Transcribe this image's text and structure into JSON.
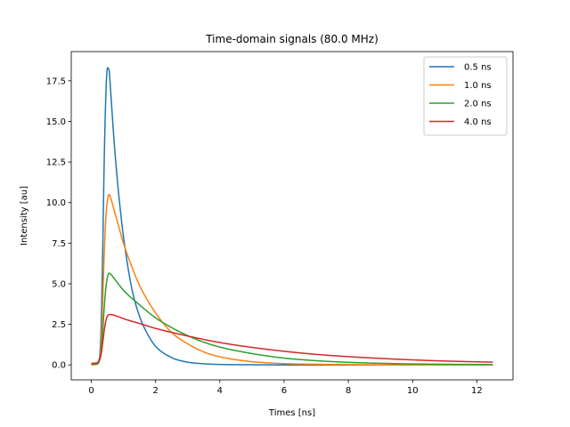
{
  "chart_data": {
    "type": "line",
    "title": "Time-domain signals (80.0 MHz)",
    "xlabel": "Times [ns]",
    "ylabel": "Intensity [au]",
    "xlim": [
      -0.625,
      13.125
    ],
    "ylim": [
      -0.92,
      19.3
    ],
    "xticks": [
      0,
      2,
      4,
      6,
      8,
      10,
      12
    ],
    "yticks": [
      0.0,
      2.5,
      5.0,
      7.5,
      10.0,
      12.5,
      15.0,
      17.5
    ],
    "ytick_labels": [
      "0.0",
      "2.5",
      "5.0",
      "7.5",
      "10.0",
      "12.5",
      "15.0",
      "17.5"
    ],
    "grid": false,
    "legend_position": "top-right",
    "x_range": [
      0,
      12.5
    ],
    "series": [
      {
        "name": "0.5 ns",
        "color": "#1f77b4",
        "points": [
          [
            0,
            0
          ],
          [
            0.15,
            0.05
          ],
          [
            0.25,
            0.4
          ],
          [
            0.3,
            2.0
          ],
          [
            0.35,
            6.5
          ],
          [
            0.4,
            12.5
          ],
          [
            0.45,
            16.5
          ],
          [
            0.5,
            18.3
          ],
          [
            0.55,
            18.2
          ],
          [
            0.6,
            16.9
          ],
          [
            0.7,
            14.0
          ],
          [
            0.8,
            11.6
          ],
          [
            0.9,
            9.6
          ],
          [
            1.0,
            7.9
          ],
          [
            1.25,
            4.8
          ],
          [
            1.5,
            3.0
          ],
          [
            1.75,
            1.9
          ],
          [
            2.0,
            1.15
          ],
          [
            2.5,
            0.45
          ],
          [
            3.0,
            0.17
          ],
          [
            3.5,
            0.07
          ],
          [
            4.0,
            0.03
          ],
          [
            5.0,
            0.01
          ],
          [
            6.0,
            0
          ],
          [
            12.5,
            0
          ]
        ]
      },
      {
        "name": "1.0 ns",
        "color": "#ff7f0e",
        "points": [
          [
            0,
            0
          ],
          [
            0.15,
            0.03
          ],
          [
            0.25,
            0.3
          ],
          [
            0.3,
            1.2
          ],
          [
            0.35,
            3.6
          ],
          [
            0.4,
            6.8
          ],
          [
            0.45,
            9.0
          ],
          [
            0.5,
            10.1
          ],
          [
            0.55,
            10.5
          ],
          [
            0.6,
            10.3
          ],
          [
            0.7,
            9.6
          ],
          [
            0.8,
            8.9
          ],
          [
            1.0,
            7.5
          ],
          [
            1.25,
            6.1
          ],
          [
            1.5,
            4.9
          ],
          [
            2.0,
            3.2
          ],
          [
            2.5,
            2.0
          ],
          [
            3.0,
            1.3
          ],
          [
            3.5,
            0.8
          ],
          [
            4.0,
            0.5
          ],
          [
            5.0,
            0.2
          ],
          [
            6.0,
            0.08
          ],
          [
            7.0,
            0.04
          ],
          [
            8.0,
            0.02
          ],
          [
            10.0,
            0
          ],
          [
            12.5,
            0
          ]
        ]
      },
      {
        "name": "2.0 ns",
        "color": "#2ca02c",
        "points": [
          [
            0,
            0.05
          ],
          [
            0.15,
            0.05
          ],
          [
            0.25,
            0.25
          ],
          [
            0.3,
            0.8
          ],
          [
            0.35,
            2.0
          ],
          [
            0.4,
            3.5
          ],
          [
            0.45,
            4.7
          ],
          [
            0.5,
            5.4
          ],
          [
            0.55,
            5.65
          ],
          [
            0.6,
            5.6
          ],
          [
            0.7,
            5.35
          ],
          [
            0.8,
            5.1
          ],
          [
            1.0,
            4.6
          ],
          [
            1.5,
            3.7
          ],
          [
            2.0,
            2.9
          ],
          [
            2.5,
            2.3
          ],
          [
            3.0,
            1.8
          ],
          [
            3.5,
            1.4
          ],
          [
            4.0,
            1.1
          ],
          [
            5.0,
            0.7
          ],
          [
            6.0,
            0.42
          ],
          [
            7.0,
            0.26
          ],
          [
            8.0,
            0.16
          ],
          [
            9.0,
            0.1
          ],
          [
            10.0,
            0.06
          ],
          [
            11.0,
            0.04
          ],
          [
            12.5,
            0.02
          ]
        ]
      },
      {
        "name": "4.0 ns",
        "color": "#d62728",
        "points": [
          [
            0,
            0.1
          ],
          [
            0.15,
            0.12
          ],
          [
            0.25,
            0.3
          ],
          [
            0.3,
            0.6
          ],
          [
            0.35,
            1.3
          ],
          [
            0.4,
            2.1
          ],
          [
            0.45,
            2.7
          ],
          [
            0.5,
            3.0
          ],
          [
            0.55,
            3.1
          ],
          [
            0.6,
            3.1
          ],
          [
            0.8,
            3.0
          ],
          [
            1.0,
            2.85
          ],
          [
            1.5,
            2.55
          ],
          [
            2.0,
            2.25
          ],
          [
            3.0,
            1.78
          ],
          [
            4.0,
            1.38
          ],
          [
            5.0,
            1.08
          ],
          [
            6.0,
            0.84
          ],
          [
            7.0,
            0.65
          ],
          [
            8.0,
            0.51
          ],
          [
            9.0,
            0.4
          ],
          [
            10.0,
            0.31
          ],
          [
            11.0,
            0.24
          ],
          [
            12.0,
            0.19
          ],
          [
            12.5,
            0.17
          ]
        ]
      }
    ]
  }
}
